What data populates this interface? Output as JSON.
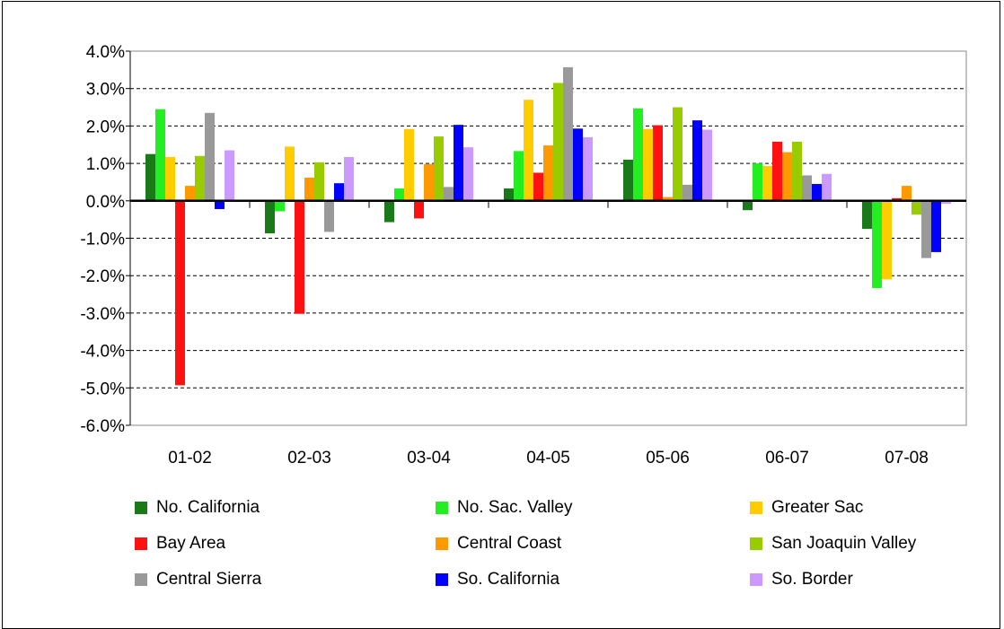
{
  "chart_data": {
    "type": "bar",
    "categories": [
      "01-02",
      "02-03",
      "03-04",
      "04-05",
      "05-06",
      "06-07",
      "07-08"
    ],
    "ylim": [
      -6.0,
      4.0
    ],
    "y_ticks": [
      "4.0%",
      "3.0%",
      "2.0%",
      "1.0%",
      "0.0%",
      "-1.0%",
      "-2.0%",
      "-3.0%",
      "-4.0%",
      "-5.0%",
      "-6.0%"
    ],
    "grid": "horizontal dashed",
    "legend_position": "bottom",
    "series": [
      {
        "name": "No. California",
        "color": "#1a7a1a",
        "values": [
          1.25,
          -0.87,
          -0.57,
          0.33,
          1.1,
          -0.25,
          -0.75
        ]
      },
      {
        "name": "No. Sac. Valley",
        "color": "#22ee22",
        "values": [
          2.45,
          -0.28,
          0.33,
          1.33,
          2.47,
          1.0,
          -2.33
        ]
      },
      {
        "name": "Greater Sac",
        "color": "#ffcc00",
        "values": [
          1.17,
          1.45,
          1.92,
          2.7,
          1.92,
          0.93,
          -2.1
        ]
      },
      {
        "name": "Bay Area",
        "color": "#ff1111",
        "values": [
          -4.93,
          -3.02,
          -0.47,
          0.75,
          2.02,
          1.58,
          0.07
        ]
      },
      {
        "name": "Central Coast",
        "color": "#ff9900",
        "values": [
          0.4,
          0.62,
          0.98,
          1.48,
          0.1,
          1.3,
          0.4
        ]
      },
      {
        "name": "San Joaquin Valley",
        "color": "#99cc00",
        "values": [
          1.2,
          1.03,
          1.72,
          3.15,
          2.5,
          1.58,
          -0.37
        ]
      },
      {
        "name": "Central Sierra",
        "color": "#999999",
        "values": [
          2.35,
          -0.83,
          0.37,
          3.57,
          0.43,
          0.68,
          -1.53
        ]
      },
      {
        "name": "So. California",
        "color": "#0000ff",
        "values": [
          -0.22,
          0.47,
          2.03,
          1.93,
          2.15,
          0.45,
          -1.37
        ]
      },
      {
        "name": "So. Border",
        "color": "#cc99ff",
        "values": [
          1.35,
          1.17,
          1.43,
          1.7,
          1.9,
          0.72,
          -0.08
        ]
      }
    ]
  }
}
